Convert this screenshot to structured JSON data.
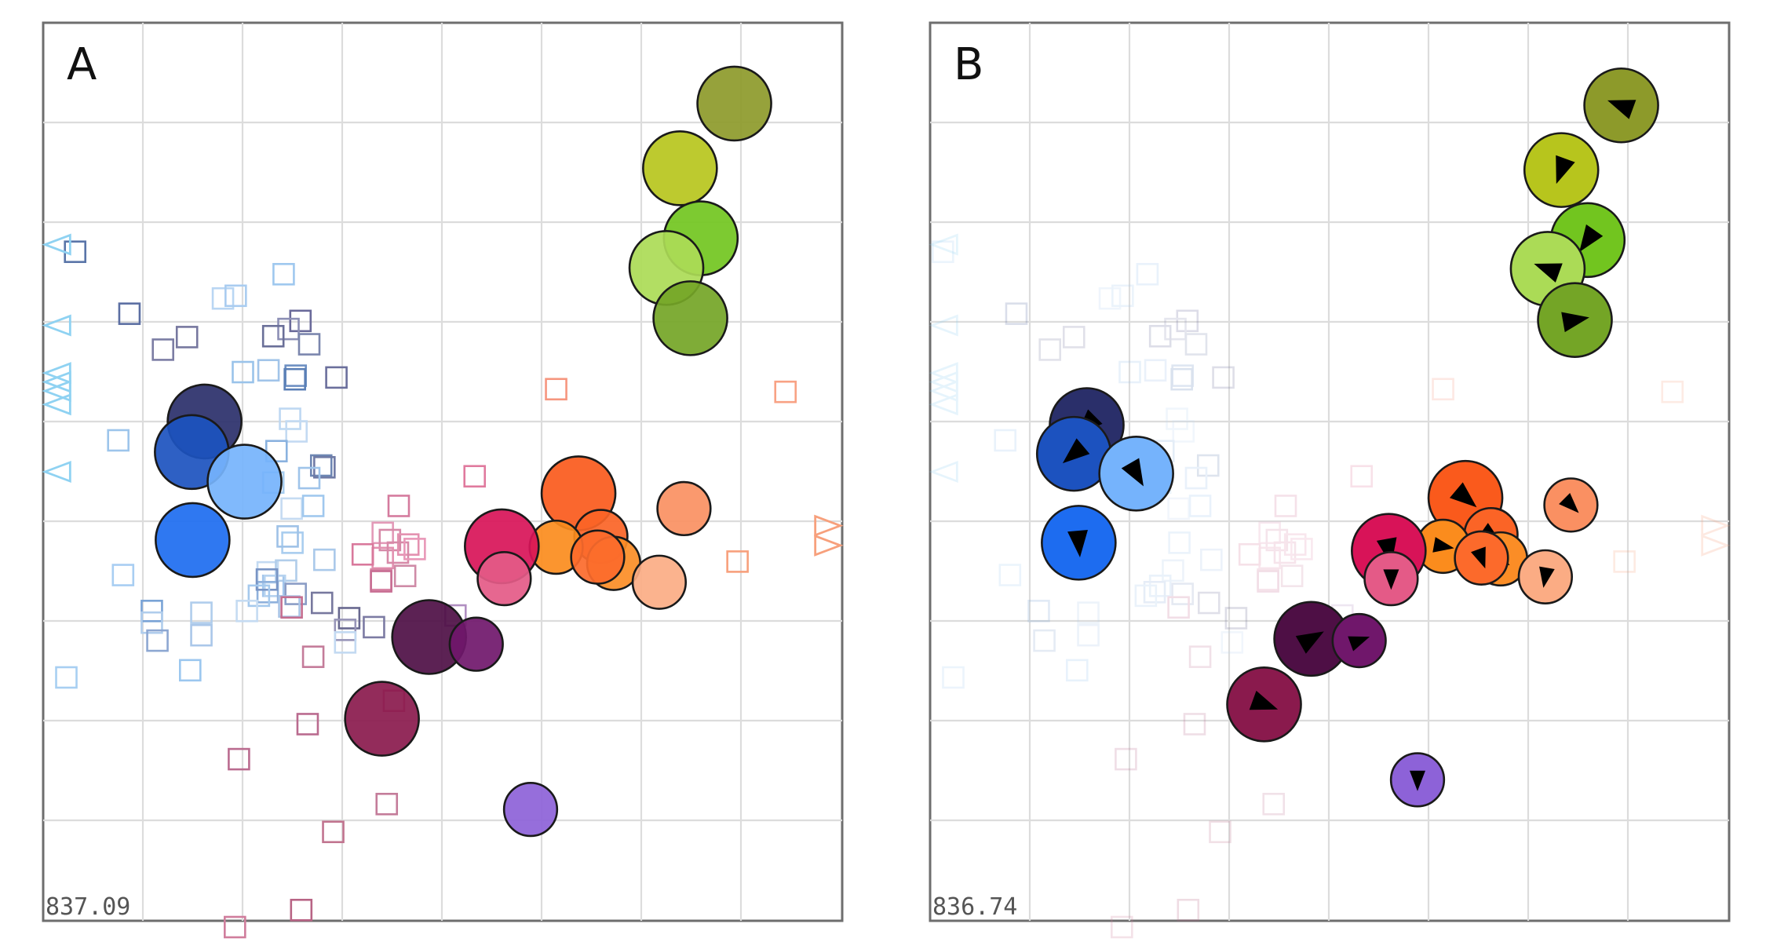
{
  "panels": [
    {
      "letter": "A",
      "score": "837.09",
      "show_arrows": false,
      "squares": [
        [
          "#a6cef3",
          0.04,
          0.255
        ],
        [
          "#5a75a8",
          0.04,
          0.255
        ],
        [
          "#9fc8ef",
          0.301,
          0.28
        ],
        [
          "#5c6fa3",
          0.108,
          0.324
        ],
        [
          "#b9d6f3",
          0.225,
          0.307
        ],
        [
          "#a9ccf0",
          0.241,
          0.304
        ],
        [
          "#6a6a9a",
          0.322,
          0.332
        ],
        [
          "#8c8fb5",
          0.307,
          0.341
        ],
        [
          "#6a6f98",
          0.288,
          0.349
        ],
        [
          "#7b86ad",
          0.333,
          0.358
        ],
        [
          "#77789f",
          0.18,
          0.35
        ],
        [
          "#7c7da4",
          0.15,
          0.364
        ],
        [
          "#9ac3ea",
          0.25,
          0.389
        ],
        [
          "#a1c4e9",
          0.282,
          0.387
        ],
        [
          "#6d8fc2",
          0.316,
          0.393
        ],
        [
          "#6b6f9c",
          0.367,
          0.395
        ],
        [
          "#5a7fb6",
          0.315,
          0.397
        ],
        [
          "#bed8f2",
          0.309,
          0.441
        ],
        [
          "#c3daf2",
          0.317,
          0.455
        ],
        [
          "#9dc5eb",
          0.094,
          0.465
        ],
        [
          "#8ab2df",
          0.292,
          0.477
        ],
        [
          "#6d86b3",
          0.348,
          0.493
        ],
        [
          "#6f7aa5",
          0.352,
          0.495
        ],
        [
          "#9fc4ea",
          0.333,
          0.507
        ],
        [
          "#a7cdef",
          0.288,
          0.512
        ],
        [
          "#c5dbf2",
          0.311,
          0.541
        ],
        [
          "#a0c8ee",
          0.338,
          0.538
        ],
        [
          "#a9cdef",
          0.312,
          0.579
        ],
        [
          "#9fc2e7",
          0.306,
          0.572
        ],
        [
          "#aac9ea",
          0.352,
          0.598
        ],
        [
          "#c3daf2",
          0.281,
          0.612
        ],
        [
          "#b1cdea",
          0.304,
          0.61
        ],
        [
          "#a8cef2",
          0.1,
          0.615
        ],
        [
          "#a3c6ec",
          0.288,
          0.627
        ],
        [
          "#b7d3ef",
          0.29,
          0.627
        ],
        [
          "#8fb1dc",
          0.281,
          0.634
        ],
        [
          "#7894c4",
          0.28,
          0.62
        ],
        [
          "#a5c9ed",
          0.27,
          0.638
        ],
        [
          "#8b9dc6",
          0.316,
          0.636
        ],
        [
          "#a9c4e6",
          0.308,
          0.65
        ],
        [
          "#79a3d6",
          0.136,
          0.655
        ],
        [
          "#b0cdec",
          0.198,
          0.657
        ],
        [
          "#c5dbf2",
          0.255,
          0.655
        ],
        [
          "#b0cdec",
          0.136,
          0.668
        ],
        [
          "#77789e",
          0.349,
          0.646
        ],
        [
          "#68688f",
          0.383,
          0.663
        ],
        [
          "#9895b8",
          0.378,
          0.676
        ],
        [
          "#7c7ba3",
          0.414,
          0.673
        ],
        [
          "#aac7e9",
          0.198,
          0.682
        ],
        [
          "#8da7d2",
          0.143,
          0.688
        ],
        [
          "#9cc7ef",
          0.184,
          0.721
        ],
        [
          "#a8cff2",
          0.029,
          0.729
        ],
        [
          "#c3daf2",
          0.378,
          0.69
        ],
        [
          "#b18fc1",
          0.516,
          0.66
        ],
        [
          "#d57b9e",
          0.445,
          0.538
        ],
        [
          "#e39ab8",
          0.425,
          0.568
        ],
        [
          "#d68aa8",
          0.434,
          0.576
        ],
        [
          "#e491b0",
          0.457,
          0.581
        ],
        [
          "#e391b0",
          0.425,
          0.596
        ],
        [
          "#d78aa8",
          0.444,
          0.59
        ],
        [
          "#e898b8",
          0.465,
          0.586
        ],
        [
          "#d9799c",
          0.4,
          0.592
        ],
        [
          "#d887a6",
          0.423,
          0.62
        ],
        [
          "#cf8ba7",
          0.453,
          0.616
        ],
        [
          "#c86e93",
          0.423,
          0.622
        ],
        [
          "#c56d8f",
          0.311,
          0.651
        ],
        [
          "#c47c9a",
          0.338,
          0.706
        ],
        [
          "#d06f95",
          0.439,
          0.755
        ],
        [
          "#ba6b8f",
          0.331,
          0.781
        ],
        [
          "#ba6b8f",
          0.245,
          0.82
        ],
        [
          "#c47c9a",
          0.43,
          0.87
        ],
        [
          "#c1748f",
          0.363,
          0.901
        ],
        [
          "#b86485",
          0.323,
          0.988
        ],
        [
          "#d07d9c",
          0.24,
          1.007
        ],
        [
          "#e07a9e",
          0.54,
          0.505
        ],
        [
          "#f6967f",
          0.642,
          0.408
        ],
        [
          "#f8a284",
          0.929,
          0.411
        ],
        [
          "#f7a07c",
          0.869,
          0.6
        ]
      ],
      "triangles": [
        [
          "#8fd2f2",
          "left",
          0.018,
          0.247
        ],
        [
          "#8fd2f2",
          "left",
          0.018,
          0.337
        ],
        [
          "#8fd2f2",
          "left",
          0.018,
          0.39
        ],
        [
          "#8fd2f2",
          "left",
          0.018,
          0.4
        ],
        [
          "#8fd2f2",
          "left",
          0.018,
          0.41
        ],
        [
          "#8fd2f2",
          "left",
          0.018,
          0.425
        ],
        [
          "#8fd2f2",
          "left",
          0.018,
          0.5
        ],
        [
          "#f7a07c",
          "right",
          0.982,
          0.56
        ],
        [
          "#f7a07c",
          "right",
          0.982,
          0.582
        ]
      ],
      "nodes": [
        [
          "#8d9a2a",
          0.865,
          0.09,
          1.0,
          null
        ],
        [
          "#b7c51d",
          0.797,
          0.162,
          1.0,
          null
        ],
        [
          "#72c51f",
          0.823,
          0.24,
          1.0,
          null
        ],
        [
          "#abdb56",
          0.78,
          0.273,
          1.0,
          null
        ],
        [
          "#74a526",
          0.81,
          0.329,
          1.0,
          null
        ],
        [
          "#2a2f6a",
          0.202,
          0.444,
          1.0,
          null
        ],
        [
          "#1c52bf",
          0.186,
          0.478,
          1.0,
          null
        ],
        [
          "#75b3fc",
          0.252,
          0.511,
          1.0,
          null
        ],
        [
          "#1d6cf0",
          0.187,
          0.576,
          1.0,
          null
        ],
        [
          "#fa5a1c",
          0.67,
          0.524,
          1.0,
          null
        ],
        [
          "#fb6426",
          0.698,
          0.572,
          0.72,
          null
        ],
        [
          "#fb8c1d",
          0.642,
          0.584,
          0.72,
          null
        ],
        [
          "#fb8d26",
          0.714,
          0.602,
          0.72,
          null
        ],
        [
          "#fc6a2b",
          0.694,
          0.595,
          0.72,
          null
        ],
        [
          "#d81358",
          0.574,
          0.583,
          1.0,
          null
        ],
        [
          "#e45a87",
          0.577,
          0.619,
          0.72,
          null
        ],
        [
          "#fa9062",
          0.802,
          0.541,
          0.72,
          null
        ],
        [
          "#fbac84",
          0.771,
          0.623,
          0.72,
          null
        ],
        [
          "#4e0f45",
          0.483,
          0.684,
          1.0,
          null
        ],
        [
          "#70176b",
          0.542,
          0.692,
          0.72,
          null
        ],
        [
          "#8a1a4d",
          0.424,
          0.775,
          1.0,
          null
        ],
        [
          "#8d62d8",
          0.61,
          0.876,
          0.72,
          null
        ]
      ]
    },
    {
      "letter": "B",
      "score": "836.74",
      "show_arrows": true,
      "squares": [
        [
          "#a6cef3",
          0.016,
          0.255
        ],
        [
          "#9fc8ef",
          0.272,
          0.28
        ],
        [
          "#5c6fa3",
          0.108,
          0.324
        ],
        [
          "#b9d6f3",
          0.225,
          0.307
        ],
        [
          "#a9ccf0",
          0.241,
          0.304
        ],
        [
          "#6a6a9a",
          0.322,
          0.332
        ],
        [
          "#8c8fb5",
          0.307,
          0.341
        ],
        [
          "#6a6f98",
          0.288,
          0.349
        ],
        [
          "#7b86ad",
          0.333,
          0.358
        ],
        [
          "#77789f",
          0.18,
          0.35
        ],
        [
          "#7c7da4",
          0.15,
          0.364
        ],
        [
          "#9ac3ea",
          0.25,
          0.389
        ],
        [
          "#a1c4e9",
          0.282,
          0.387
        ],
        [
          "#6d8fc2",
          0.316,
          0.393
        ],
        [
          "#6b6f9c",
          0.367,
          0.395
        ],
        [
          "#5a7fb6",
          0.315,
          0.397
        ],
        [
          "#bed8f2",
          0.309,
          0.441
        ],
        [
          "#c3daf2",
          0.317,
          0.455
        ],
        [
          "#9dc5eb",
          0.094,
          0.465
        ],
        [
          "#8ab2df",
          0.292,
          0.477
        ],
        [
          "#6d86b3",
          0.348,
          0.493
        ],
        [
          "#9fc4ea",
          0.333,
          0.507
        ],
        [
          "#a7cdef",
          0.288,
          0.512
        ],
        [
          "#c5dbf2",
          0.311,
          0.541
        ],
        [
          "#a0c8ee",
          0.338,
          0.538
        ],
        [
          "#a9cdef",
          0.312,
          0.579
        ],
        [
          "#aac9ea",
          0.352,
          0.598
        ],
        [
          "#b1cdea",
          0.304,
          0.61
        ],
        [
          "#a8cef2",
          0.1,
          0.615
        ],
        [
          "#a3c6ec",
          0.288,
          0.627
        ],
        [
          "#8fb1dc",
          0.281,
          0.634
        ],
        [
          "#a5c9ed",
          0.27,
          0.638
        ],
        [
          "#8b9dc6",
          0.316,
          0.636
        ],
        [
          "#79a3d6",
          0.136,
          0.655
        ],
        [
          "#b0cdec",
          0.198,
          0.657
        ],
        [
          "#77789e",
          0.349,
          0.646
        ],
        [
          "#68688f",
          0.383,
          0.663
        ],
        [
          "#aac7e9",
          0.198,
          0.682
        ],
        [
          "#8da7d2",
          0.143,
          0.688
        ],
        [
          "#9cc7ef",
          0.184,
          0.721
        ],
        [
          "#a8cff2",
          0.029,
          0.729
        ],
        [
          "#c3daf2",
          0.378,
          0.69
        ],
        [
          "#b18fc1",
          0.516,
          0.66
        ],
        [
          "#d57b9e",
          0.445,
          0.538
        ],
        [
          "#e39ab8",
          0.425,
          0.568
        ],
        [
          "#d68aa8",
          0.434,
          0.576
        ],
        [
          "#e491b0",
          0.457,
          0.581
        ],
        [
          "#e391b0",
          0.425,
          0.596
        ],
        [
          "#d78aa8",
          0.444,
          0.59
        ],
        [
          "#e898b8",
          0.465,
          0.586
        ],
        [
          "#d9799c",
          0.4,
          0.592
        ],
        [
          "#d887a6",
          0.423,
          0.62
        ],
        [
          "#cf8ba7",
          0.453,
          0.616
        ],
        [
          "#c86e93",
          0.423,
          0.622
        ],
        [
          "#c56d8f",
          0.311,
          0.651
        ],
        [
          "#c47c9a",
          0.338,
          0.706
        ],
        [
          "#d06f95",
          0.439,
          0.755
        ],
        [
          "#ba6b8f",
          0.331,
          0.781
        ],
        [
          "#ba6b8f",
          0.245,
          0.82
        ],
        [
          "#c47c9a",
          0.43,
          0.87
        ],
        [
          "#c1748f",
          0.363,
          0.901
        ],
        [
          "#b86485",
          0.323,
          0.988
        ],
        [
          "#d07d9c",
          0.24,
          1.007
        ],
        [
          "#e07a9e",
          0.54,
          0.505
        ],
        [
          "#f6967f",
          0.642,
          0.408
        ],
        [
          "#f8a284",
          0.929,
          0.411
        ],
        [
          "#f7a07c",
          0.869,
          0.6
        ]
      ],
      "triangles": [
        [
          "#8fd2f2",
          "left",
          0.018,
          0.247
        ],
        [
          "#8fd2f2",
          "left",
          0.018,
          0.337
        ],
        [
          "#8fd2f2",
          "left",
          0.018,
          0.39
        ],
        [
          "#8fd2f2",
          "left",
          0.018,
          0.4
        ],
        [
          "#8fd2f2",
          "left",
          0.018,
          0.41
        ],
        [
          "#8fd2f2",
          "left",
          0.018,
          0.425
        ],
        [
          "#8fd2f2",
          "left",
          0.018,
          0.5
        ],
        [
          "#f7a07c",
          "right",
          0.982,
          0.56
        ],
        [
          "#f7a07c",
          "right",
          0.982,
          0.582
        ]
      ],
      "nodes": [
        [
          "#8d9a2a",
          0.865,
          0.092,
          1.0,
          200
        ],
        [
          "#b7c51d",
          0.79,
          0.164,
          1.0,
          110
        ],
        [
          "#72c51f",
          0.823,
          0.242,
          1.0,
          125
        ],
        [
          "#abdb56",
          0.773,
          0.274,
          1.0,
          200
        ],
        [
          "#74a526",
          0.807,
          0.331,
          1.0,
          -10
        ],
        [
          "#2a2f6a",
          0.196,
          0.448,
          1.0,
          135
        ],
        [
          "#1c52bf",
          0.18,
          0.48,
          1.0,
          140
        ],
        [
          "#75b3fc",
          0.258,
          0.502,
          1.0,
          60
        ],
        [
          "#1d6cf0",
          0.186,
          0.579,
          1.0,
          85
        ],
        [
          "#fa5a1c",
          0.67,
          0.529,
          1.0,
          40
        ],
        [
          "#fb6426",
          0.702,
          0.57,
          0.72,
          35
        ],
        [
          "#fb8c1d",
          0.642,
          0.583,
          0.72,
          10
        ],
        [
          "#fb8d26",
          0.714,
          0.597,
          0.72,
          35
        ],
        [
          "#fc6a2b",
          0.69,
          0.596,
          0.72,
          70
        ],
        [
          "#d81358",
          0.574,
          0.588,
          1.0,
          80
        ],
        [
          "#e45a87",
          0.577,
          0.619,
          0.72,
          90
        ],
        [
          "#fa9062",
          0.802,
          0.537,
          0.72,
          45
        ],
        [
          "#fbac84",
          0.77,
          0.617,
          0.72,
          100
        ],
        [
          "#4e0f45",
          0.477,
          0.686,
          1.0,
          -30
        ],
        [
          "#70176b",
          0.537,
          0.688,
          0.72,
          -20
        ],
        [
          "#8a1a4d",
          0.418,
          0.759,
          1.0,
          20
        ],
        [
          "#8d62d8",
          0.61,
          0.843,
          0.72,
          90
        ]
      ]
    }
  ]
}
